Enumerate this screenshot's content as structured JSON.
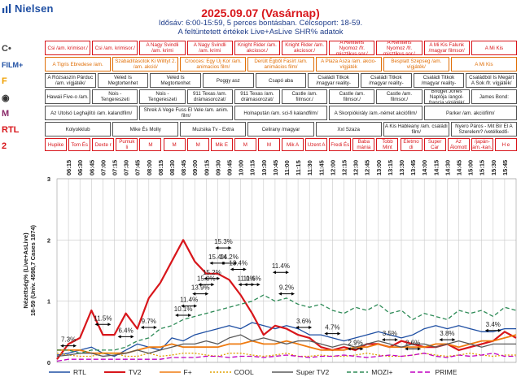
{
  "header": {
    "brand": "Nielsen",
    "title": "2025.09.07 (Vasárnap)",
    "subtitle1": "Idősáv:  6:00-15:59, 5 perces bontásban. Célcsoport: 18-59.",
    "subtitle2": "A feltüntetett értékek Live+AsLive SHR% adatok"
  },
  "channels": [
    {
      "name": "RTL",
      "icon": "rtl-logo-icon",
      "color": "#1f4fa3"
    },
    {
      "name": "TV2",
      "icon": "tv2-logo-icon",
      "color": "#d8161b"
    },
    {
      "name": "F+",
      "icon": "film-plus-logo-icon",
      "color": "#ef7b10"
    },
    {
      "name": "COOL",
      "icon": "cool-logo-icon",
      "color": "#e0a000"
    },
    {
      "name": "Super TV2",
      "icon": "super-tv2-logo-icon",
      "color": "#5a5a5a"
    },
    {
      "name": "MOZI+",
      "icon": "mozi-plus-logo-icon",
      "color": "#2e8b57"
    },
    {
      "name": "PRIME",
      "icon": "prime-logo-icon",
      "color": "#c000c0"
    }
  ],
  "programs": [
    [
      {
        "t": "Csi /am. krimisor./",
        "style": "red"
      },
      {
        "t": "Csi /am. krimisor./",
        "style": "red"
      },
      {
        "t": "A Nagy Svindli /am. krimi",
        "style": "red"
      },
      {
        "t": "A Nagy Svindli /am. krimi",
        "style": "red"
      },
      {
        "t": "Knight Rider /am. akciosor./",
        "style": "red"
      },
      {
        "t": "Knight Rider /am. akciosor./",
        "style": "red"
      },
      {
        "t": "A Renitens Nyomoz /fr. misztikus sor./",
        "style": "red"
      },
      {
        "t": "A Renitens Nyomoz /fr. misztikus sor./",
        "style": "red"
      },
      {
        "t": "A Mi Kis Falunk /magyar filmsor/",
        "style": "red"
      },
      {
        "t": "A Mi Kis",
        "style": "red"
      }
    ],
    [
      {
        "t": "A Tigris Ebredese /am.",
        "style": "orange"
      },
      {
        "t": "Szabadításotok Ki Willtyt 2. /am. akció/",
        "style": "orange"
      },
      {
        "t": "Crooces: Egy Új Kor /am. animacios film/",
        "style": "orange"
      },
      {
        "t": "Derült Égből Fasírt /am. animácios film/",
        "style": "orange"
      },
      {
        "t": "A Plaza Asza /am. akcio-vígjáték",
        "style": "orange"
      },
      {
        "t": "Besplatt Szepseg /am. vígjáték/",
        "style": "orange"
      },
      {
        "t": "A Mi Kis",
        "style": "orange"
      }
    ],
    [
      {
        "t": "A Rózsaszín Párduc /am. vígjáték/",
        "style": ""
      },
      {
        "t": "Veled Is Megtortenhet",
        "style": ""
      },
      {
        "t": "Veled Is Megtortenhet",
        "style": ""
      },
      {
        "t": "Poggy asz",
        "style": ""
      },
      {
        "t": "Csapó aba",
        "style": ""
      },
      {
        "t": "Családi Titkok /magyar reality-",
        "style": ""
      },
      {
        "t": "Családi Titkok /magyar reality-",
        "style": ""
      },
      {
        "t": "Családi Titkok /magyar reality-",
        "style": ""
      },
      {
        "t": "Családból Is Megárt A Sok /fr. vígjáték/",
        "style": ""
      }
    ],
    [
      {
        "t": "Hawaii Five-o /am.",
        "style": ""
      },
      {
        "t": "Nois - Tengereszeti",
        "style": ""
      },
      {
        "t": "Nois - Tengereszeti",
        "style": ""
      },
      {
        "t": "911 Texas /am. drámasorozat/",
        "style": ""
      },
      {
        "t": "911 Texas /am. drámasorozat/",
        "style": ""
      },
      {
        "t": "Castle /am. filmsor./",
        "style": ""
      },
      {
        "t": "Castle /am. filmsor./",
        "style": ""
      },
      {
        "t": "Castle /am. filmsor./",
        "style": ""
      },
      {
        "t": "Bridget Jones Naplója /angol-francia vígjáték/",
        "style": ""
      },
      {
        "t": "James Bond:",
        "style": ""
      }
    ],
    [
      {
        "t": "Az Utolsó Leghajlító /am. kalandfilm/",
        "style": ""
      },
      {
        "t": "Shrek A Vege Fuss El Vele /am. anim. film/",
        "style": ""
      },
      {
        "t": "Holnapután /am. sci-fi kalandfilm/",
        "style": ""
      },
      {
        "t": "A Skorpiókirály /am.-német akciófilm/",
        "style": ""
      },
      {
        "t": "Parker /am. akciófilm/",
        "style": ""
      }
    ],
    [
      {
        "t": "Kolyokklub",
        "style": ""
      },
      {
        "t": "Mike És Molly",
        "style": ""
      },
      {
        "t": "Muzsika Tv - Extra",
        "style": ""
      },
      {
        "t": "Celirany /magyar",
        "style": ""
      },
      {
        "t": "Xxl Szaza",
        "style": ""
      },
      {
        "t": "A Kis Hableany /am. családi film/",
        "style": ""
      },
      {
        "t": "Nyero Páros - Mit Bír El A Szerelem? /vetélkedő-",
        "style": ""
      }
    ],
    [
      {
        "t": "Hupike",
        "style": "red"
      },
      {
        "t": "Tom És",
        "style": "red"
      },
      {
        "t": "Dexte r",
        "style": "red"
      },
      {
        "t": "Pumuk li",
        "style": "red"
      },
      {
        "t": "M",
        "style": "red"
      },
      {
        "t": "M",
        "style": "red"
      },
      {
        "t": "M",
        "style": "red"
      },
      {
        "t": "Mik E",
        "style": "red"
      },
      {
        "t": "M",
        "style": "red"
      },
      {
        "t": "M",
        "style": "red"
      },
      {
        "t": "Mik A",
        "style": "red"
      },
      {
        "t": "Uzent A",
        "style": "red"
      },
      {
        "t": "Fredi És",
        "style": "red"
      },
      {
        "t": "Baba mánia",
        "style": "red"
      },
      {
        "t": "Tobb Mint",
        "style": "red"
      },
      {
        "t": "Eletmo di",
        "style": "red"
      },
      {
        "t": "Super Car",
        "style": "red"
      },
      {
        "t": "Az Álomott",
        "style": "red"
      },
      {
        "t": "Sonic A Sundiszno /japán-am.-kan. animált kalandfilm/",
        "style": "red"
      },
      {
        "t": "H e",
        "style": "red"
      }
    ]
  ],
  "chart_data": {
    "type": "line",
    "ylabel": "Nézettség% (Live+AsLive) 18-59 (Univ. 4598,7 Cases 1874)",
    "ylim": [
      0,
      3
    ],
    "y_ticks": [
      "0",
      "1",
      "2",
      "3"
    ],
    "x_ticks": [
      "06:15",
      "06:30",
      "06:45",
      "07:00",
      "07:15",
      "07:30",
      "07:45",
      "08:00",
      "08:15",
      "08:30",
      "08:45",
      "09:00",
      "09:15",
      "09:30",
      "09:45",
      "10:00",
      "10:15",
      "10:30",
      "10:45",
      "11:00",
      "11:15",
      "11:30",
      "11:45",
      "12:00",
      "12:15",
      "12:30",
      "12:45",
      "13:00",
      "13:15",
      "13:30",
      "13:45",
      "14:00",
      "14:15",
      "14:30",
      "14:45",
      "15:00",
      "15:15",
      "15:30",
      "15:45"
    ],
    "x": [
      "06:00",
      "06:15",
      "06:30",
      "06:45",
      "07:00",
      "07:15",
      "07:30",
      "07:45",
      "08:00",
      "08:15",
      "08:30",
      "08:45",
      "09:00",
      "09:15",
      "09:30",
      "09:45",
      "10:00",
      "10:15",
      "10:30",
      "10:45",
      "11:00",
      "11:15",
      "11:30",
      "11:45",
      "12:00",
      "12:15",
      "12:30",
      "12:45",
      "13:00",
      "13:15",
      "13:30",
      "13:45",
      "14:00",
      "14:15",
      "14:30",
      "14:45",
      "15:00",
      "15:15",
      "15:30",
      "15:45",
      "15:55"
    ],
    "series": [
      {
        "name": "RTL",
        "color": "#1f4fa3",
        "dash": "",
        "values": [
          0.12,
          0.15,
          0.2,
          0.25,
          0.15,
          0.1,
          0.2,
          0.3,
          0.25,
          0.2,
          0.4,
          0.35,
          0.45,
          0.5,
          0.55,
          0.6,
          0.55,
          0.65,
          0.6,
          0.55,
          0.6,
          0.55,
          0.45,
          0.45,
          0.4,
          0.35,
          0.4,
          0.45,
          0.5,
          0.45,
          0.4,
          0.45,
          0.55,
          0.6,
          0.55,
          0.6,
          0.55,
          0.5,
          0.5,
          0.55,
          0.55
        ]
      },
      {
        "name": "TV2",
        "color": "#d8161b",
        "dash": "",
        "values": [
          0.05,
          0.3,
          0.4,
          0.85,
          0.45,
          0.45,
          0.8,
          0.55,
          1.05,
          1.3,
          1.65,
          2.0,
          1.65,
          1.45,
          1.45,
          1.35,
          1.1,
          0.8,
          0.45,
          0.6,
          0.55,
          0.45,
          0.4,
          0.25,
          0.2,
          0.25,
          0.2,
          0.3,
          0.3,
          0.25,
          0.35,
          0.3,
          0.25,
          0.25,
          0.3,
          0.2,
          0.25,
          0.3,
          0.35,
          0.5,
          0.4
        ]
      },
      {
        "name": "F+",
        "color": "#ef7b10",
        "dash": "",
        "values": [
          0.2,
          0.2,
          0.2,
          0.15,
          0.15,
          0.15,
          0.15,
          0.2,
          0.25,
          0.25,
          0.3,
          0.25,
          0.25,
          0.25,
          0.25,
          0.3,
          0.3,
          0.35,
          0.3,
          0.3,
          0.35,
          0.3,
          0.25,
          0.2,
          0.2,
          0.2,
          0.25,
          0.25,
          0.3,
          0.25,
          0.25,
          0.25,
          0.25,
          0.3,
          0.3,
          0.25,
          0.3,
          0.35,
          0.35,
          0.4,
          0.45
        ]
      },
      {
        "name": "COOL",
        "color": "#e0a000",
        "dash": "2,2",
        "values": [
          0.15,
          0.12,
          0.1,
          0.1,
          0.15,
          0.15,
          0.1,
          0.1,
          0.15,
          0.1,
          0.12,
          0.15,
          0.15,
          0.12,
          0.1,
          0.15,
          0.15,
          0.12,
          0.1,
          0.12,
          0.15,
          0.1,
          0.1,
          0.12,
          0.1,
          0.1,
          0.12,
          0.15,
          0.12,
          0.1,
          0.1,
          0.12,
          0.15,
          0.12,
          0.1,
          0.12,
          0.15,
          0.12,
          0.1,
          0.12,
          0.12
        ]
      },
      {
        "name": "Super TV2",
        "color": "#5a5a5a",
        "dash": "",
        "values": [
          0.1,
          0.12,
          0.15,
          0.15,
          0.1,
          0.12,
          0.15,
          0.2,
          0.15,
          0.2,
          0.25,
          0.3,
          0.3,
          0.35,
          0.3,
          0.4,
          0.45,
          0.35,
          0.4,
          0.35,
          0.3,
          0.35,
          0.35,
          0.3,
          0.25,
          0.3,
          0.25,
          0.3,
          0.35,
          0.3,
          0.25,
          0.3,
          0.3,
          0.25,
          0.3,
          0.35,
          0.3,
          0.25,
          0.3,
          0.3,
          0.3
        ]
      },
      {
        "name": "MOZI+",
        "color": "#2e8b57",
        "dash": "5,3",
        "values": [
          0.2,
          0.2,
          0.15,
          0.2,
          0.2,
          0.2,
          0.25,
          0.35,
          0.4,
          0.55,
          0.6,
          0.7,
          0.75,
          0.8,
          0.85,
          0.9,
          0.95,
          1.0,
          1.1,
          1.0,
          1.05,
          0.95,
          0.9,
          0.95,
          0.85,
          0.8,
          0.9,
          0.85,
          0.95,
          0.8,
          0.85,
          0.7,
          0.8,
          0.75,
          0.7,
          0.85,
          0.8,
          0.85,
          0.75,
          0.9,
          0.85
        ]
      },
      {
        "name": "PRIME",
        "color": "#c000c0",
        "dash": "6,3",
        "values": [
          0.02,
          0.05,
          0.05,
          0.05,
          0.05,
          0.05,
          0.05,
          0.05,
          0.05,
          0.05,
          0.08,
          0.08,
          0.08,
          0.1,
          0.1,
          0.08,
          0.1,
          0.1,
          0.08,
          0.1,
          0.12,
          0.1,
          0.08,
          0.1,
          0.1,
          0.12,
          0.1,
          0.08,
          0.1,
          0.12,
          0.1,
          0.12,
          0.15,
          0.1,
          0.08,
          0.12,
          0.1,
          0.12,
          0.15,
          0.1,
          0.1
        ]
      }
    ],
    "annotations": [
      {
        "label": "7.3%",
        "x_index": 1,
        "y": 0.35
      },
      {
        "label": "11.5%",
        "x_index": 4,
        "y": 0.7
      },
      {
        "label": "6.4%",
        "x_index": 6,
        "y": 0.5
      },
      {
        "label": "9.7%",
        "x_index": 8,
        "y": 0.65
      },
      {
        "label": "10.1%",
        "x_index": 11,
        "y": 0.85
      },
      {
        "label": "11.4%",
        "x_index": 11.5,
        "y": 1.0
      },
      {
        "label": "13.9%",
        "x_index": 12.5,
        "y": 1.2
      },
      {
        "label": "15.0%",
        "x_index": 13,
        "y": 1.35
      },
      {
        "label": "15.2%",
        "x_index": 13.5,
        "y": 1.45
      },
      {
        "label": "15.3%",
        "x_index": 14.5,
        "y": 1.95
      },
      {
        "label": "15.4%",
        "x_index": 14,
        "y": 1.7
      },
      {
        "label": "14.2%",
        "x_index": 15,
        "y": 1.7
      },
      {
        "label": "13.4%",
        "x_index": 15.8,
        "y": 1.6
      },
      {
        "label": "11.0%",
        "x_index": 16.5,
        "y": 1.35
      },
      {
        "label": "11.6%",
        "x_index": 17,
        "y": 1.35
      },
      {
        "label": "11.4%",
        "x_index": 19.5,
        "y": 1.55
      },
      {
        "label": "9.2%",
        "x_index": 20,
        "y": 1.2
      },
      {
        "label": "3.6%",
        "x_index": 21.5,
        "y": 0.65
      },
      {
        "label": "4.7%",
        "x_index": 24,
        "y": 0.55
      },
      {
        "label": "2.9%",
        "x_index": 26,
        "y": 0.3
      },
      {
        "label": "3.5%",
        "x_index": 29,
        "y": 0.45
      },
      {
        "label": "2.6%",
        "x_index": 31,
        "y": 0.3
      },
      {
        "label": "3.8%",
        "x_index": 34,
        "y": 0.45
      },
      {
        "label": "3.4%",
        "x_index": 38,
        "y": 0.6
      }
    ]
  }
}
